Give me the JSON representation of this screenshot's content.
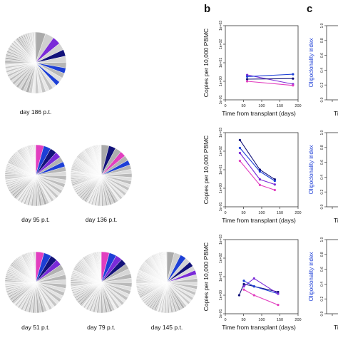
{
  "panel_letters": {
    "b": "b",
    "c": "c"
  },
  "pie_labels": {
    "row1": [
      "day 186 p.t."
    ],
    "row2": [
      "day 95 p.t.",
      "day 136 p.t."
    ],
    "row3": [
      "day 51 p.t.",
      "day 79 p.t.",
      "day 145 p.t."
    ]
  },
  "colors": {
    "navy": "#12127a",
    "blue": "#1d3fd6",
    "violet": "#7a2bd8",
    "magenta": "#e23fbf",
    "pie_gray": "#c9c9c9",
    "pie_stroke": "#ffffff"
  },
  "chart_data": [
    {
      "type": "line",
      "panel": "b",
      "ylabel": "Copies per 10,000 PBMC",
      "xlabel": "Time from transplant (days)",
      "log_y": true,
      "xlim": [
        0,
        200
      ],
      "ylim": [
        0.1,
        1000
      ],
      "xticks": [
        "0",
        "50",
        "100",
        "150",
        "200"
      ],
      "yticks": [
        "1e-01",
        "1e+00",
        "1e+01",
        "1e+02",
        "1e+03"
      ],
      "series": [
        {
          "x": [
            60,
            186
          ],
          "values": [
            2.2,
            0.7
          ],
          "color": "#7a2bd8"
        },
        {
          "x": [
            60,
            186
          ],
          "values": [
            1.8,
            2.4
          ],
          "color": "#1d3fd6"
        },
        {
          "x": [
            60,
            186
          ],
          "values": [
            1.3,
            1.4
          ],
          "color": "#12127a"
        },
        {
          "x": [
            60,
            186
          ],
          "values": [
            1.0,
            0.6
          ],
          "color": "#e23fbf"
        }
      ]
    },
    {
      "type": "line",
      "panel": "b",
      "ylabel": "Copies per 10,000 PBMC",
      "xlabel": "Time from transplant (days)",
      "log_y": true,
      "xlim": [
        0,
        200
      ],
      "ylim": [
        0.1,
        1000
      ],
      "xticks": [
        "0",
        "50",
        "100",
        "150",
        "200"
      ],
      "yticks": [
        "1e-01",
        "1e+00",
        "1e+01",
        "1e+02",
        "1e+03"
      ],
      "series": [
        {
          "x": [
            40,
            95,
            136
          ],
          "values": [
            400,
            10,
            3
          ],
          "color": "#12127a"
        },
        {
          "x": [
            40,
            95,
            136
          ],
          "values": [
            150,
            8,
            2.5
          ],
          "color": "#1d3fd6"
        },
        {
          "x": [
            40,
            95,
            136
          ],
          "values": [
            80,
            3,
            1.6
          ],
          "color": "#7a2bd8"
        },
        {
          "x": [
            40,
            95,
            136
          ],
          "values": [
            30,
            1.5,
            0.8
          ],
          "color": "#e23fbf"
        }
      ]
    },
    {
      "type": "line",
      "panel": "b",
      "ylabel": "Copies per 10,000 PBMC",
      "xlabel": "Time from transplant (days)",
      "log_y": true,
      "xlim": [
        0,
        200
      ],
      "ylim": [
        0.1,
        1000
      ],
      "xticks": [
        "0",
        "50",
        "100",
        "150",
        "200"
      ],
      "yticks": [
        "1e-01",
        "1e+00",
        "1e+01",
        "1e+02",
        "1e+03"
      ],
      "series": [
        {
          "x": [
            38,
            51,
            79,
            145
          ],
          "values": [
            1,
            4,
            3,
            1.5
          ],
          "color": "#12127a"
        },
        {
          "x": [
            51,
            79,
            145
          ],
          "values": [
            6,
            3,
            1.2
          ],
          "color": "#1d3fd6"
        },
        {
          "x": [
            51,
            79,
            145
          ],
          "values": [
            3,
            8,
            1.2
          ],
          "color": "#7a2bd8"
        },
        {
          "x": [
            51,
            79,
            145
          ],
          "values": [
            2,
            1,
            0.3
          ],
          "color": "#e23fbf"
        }
      ]
    },
    {
      "type": "line",
      "panel": "c",
      "ylabel": "Oligoclonality index",
      "xlabel": "Ti",
      "ylim": [
        0,
        1
      ],
      "yticks": [
        "0.0",
        "0.2",
        "0.4",
        "0.6",
        "0.8",
        "1.0"
      ],
      "series": []
    },
    {
      "type": "line",
      "panel": "c",
      "ylabel": "Oligoclonality index",
      "xlabel": "Ti",
      "ylim": [
        0,
        1
      ],
      "yticks": [
        "0.0",
        "0.2",
        "0.4",
        "0.6",
        "0.8",
        "1.0"
      ],
      "series": []
    },
    {
      "type": "line",
      "panel": "c",
      "ylabel": "Oligoclonality index",
      "xlabel": "Ti",
      "ylim": [
        0,
        1
      ],
      "yticks": [
        "0.0",
        "0.2",
        "0.4",
        "0.6",
        "0.8",
        "1.0"
      ],
      "series": []
    }
  ]
}
